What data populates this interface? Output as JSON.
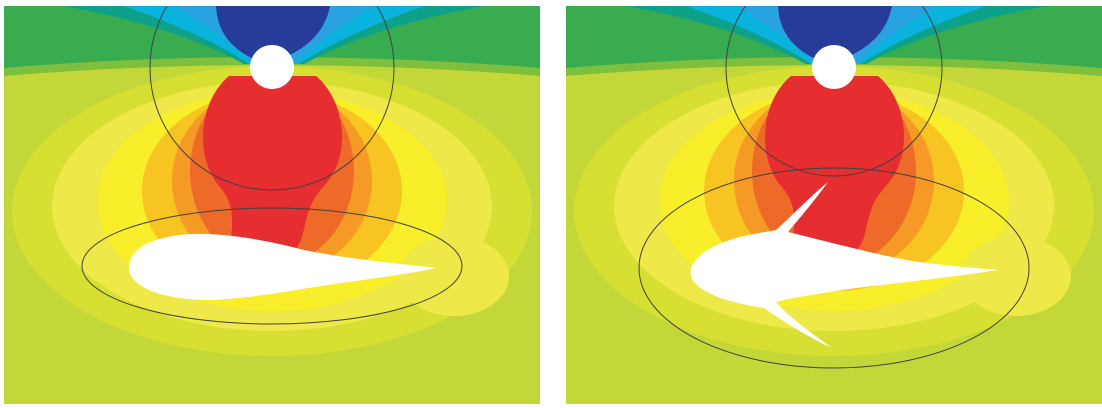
{
  "figure": {
    "panels": [
      {
        "id": "left",
        "obstacle": "streamlined-body"
      },
      {
        "id": "right",
        "obstacle": "streamlined-body-with-spikes"
      }
    ],
    "colors": {
      "background": "#c3d838",
      "lime": "#d6df32",
      "yellow_light": "#eee949",
      "yellow": "#f8ee2a",
      "orange_light": "#f8c422",
      "orange": "#f49a25",
      "orange_dark": "#ee6a28",
      "red": "#e62d30",
      "green_light": "#7fbf3e",
      "green": "#38ac4f",
      "teal": "#0da189",
      "cyan": "#0ab3dd",
      "blue": "#26a3e0",
      "navy": "#263c98",
      "outline": "#404040",
      "cutout": "#ffffff"
    }
  }
}
